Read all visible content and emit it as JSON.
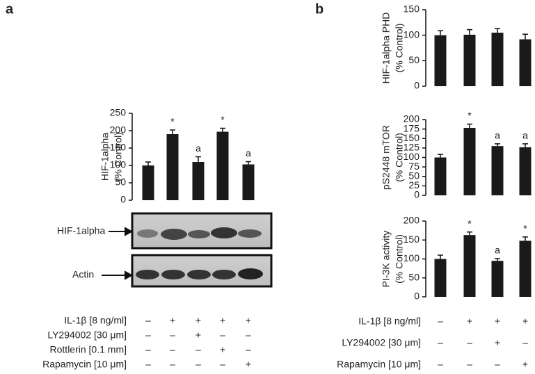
{
  "panels": [
    "a",
    "b"
  ],
  "blots": [
    "HIF-1alpha",
    "Actin"
  ],
  "chart_data": [
    {
      "type": "bar",
      "y_label": [
        "HIF-1alpha",
        "(% Control)"
      ],
      "color": "#1a1a1a",
      "values": [
        100,
        190,
        110,
        197,
        103
      ],
      "errors": [
        10,
        12,
        15,
        10,
        8
      ],
      "annotations": [
        null,
        "*",
        "a",
        "*",
        "a"
      ],
      "ylim": [
        0,
        250
      ],
      "yticks": [
        0,
        50,
        100,
        150,
        200,
        250
      ]
    },
    {
      "type": "bar",
      "y_label": [
        "HIF-1alpha PHD",
        "(% Control)"
      ],
      "color": "#1a1a1a",
      "values": [
        100,
        101,
        105,
        92
      ],
      "errors": [
        9,
        10,
        8,
        10
      ],
      "annotations": [
        null,
        null,
        null,
        null
      ],
      "ylim": [
        0,
        150
      ],
      "yticks": [
        0,
        50,
        100,
        150
      ]
    },
    {
      "type": "bar",
      "y_label": [
        "pS2448 mTOR",
        "(% Control)"
      ],
      "color": "#1a1a1a",
      "values": [
        100,
        178,
        130,
        127
      ],
      "errors": [
        8,
        10,
        6,
        9
      ],
      "annotations": [
        null,
        "*",
        "a",
        "a"
      ],
      "ylim": [
        0,
        200
      ],
      "yticks": [
        0,
        25,
        50,
        75,
        100,
        125,
        150,
        175,
        200
      ]
    },
    {
      "type": "bar",
      "y_label": [
        "PI-3K activity",
        "(% Control)"
      ],
      "color": "#1a1a1a",
      "values": [
        100,
        163,
        95,
        148
      ],
      "errors": [
        10,
        8,
        6,
        10
      ],
      "annotations": [
        null,
        "*",
        "a",
        "*"
      ],
      "ylim": [
        0,
        200
      ],
      "yticks": [
        0,
        50,
        100,
        150,
        200
      ]
    }
  ],
  "treatments": [
    [
      {
        "label": "IL-1β [8 ng/ml]",
        "signs": [
          "–",
          "+",
          "+",
          "+",
          "+"
        ]
      },
      {
        "label": "LY294002 [30 μm]",
        "signs": [
          "–",
          "–",
          "+",
          "–",
          "–"
        ]
      },
      {
        "label": "Rottlerin [0.1 mm]",
        "signs": [
          "–",
          "–",
          "–",
          "+",
          "–"
        ]
      },
      {
        "label": "Rapamycin [10 μm]",
        "signs": [
          "–",
          "–",
          "–",
          "–",
          "+"
        ]
      }
    ],
    [
      {
        "label": "IL-1β [8 ng/ml]",
        "signs": [
          "–",
          "+",
          "+",
          "+"
        ]
      },
      {
        "label": "LY294002 [30 μm]",
        "signs": [
          "–",
          "–",
          "+",
          "–"
        ]
      },
      {
        "label": "Rapamycin [10 μm]",
        "signs": [
          "–",
          "–",
          "–",
          "+"
        ]
      }
    ]
  ]
}
